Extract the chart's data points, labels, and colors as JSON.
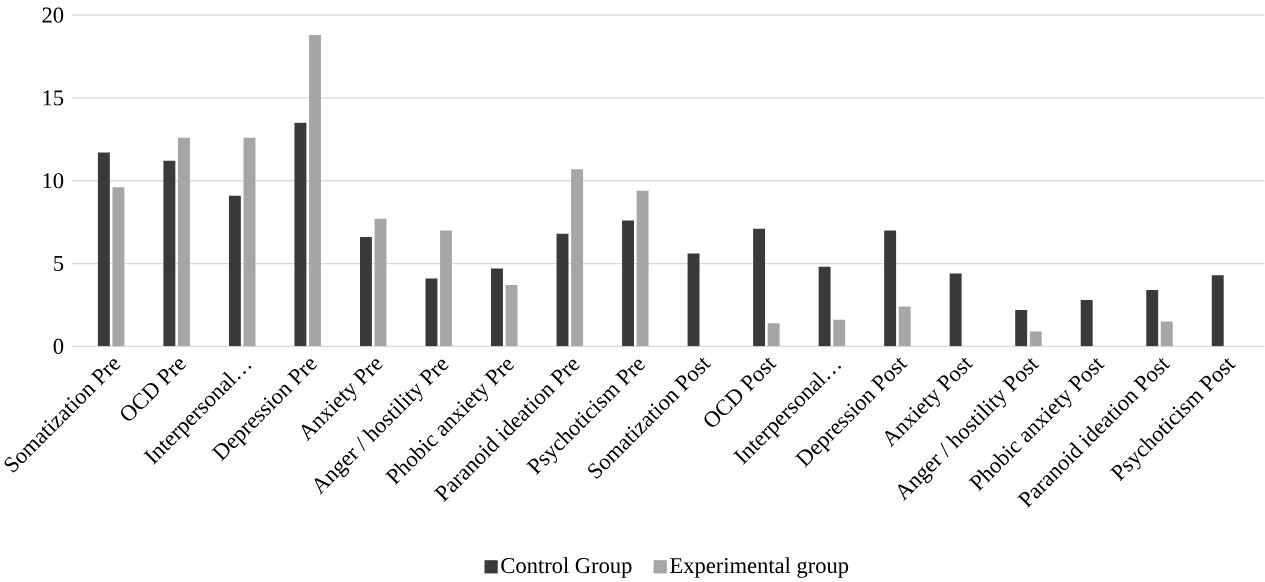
{
  "chart_data": {
    "type": "bar",
    "categories": [
      "Somatization Pre",
      "OCD Pre",
      "Interpersonal…",
      "Depression Pre",
      "Anxiety Pre",
      "Anger / hostility Pre",
      "Phobic anxiety Pre",
      "Paranoid ideation Pre",
      "Psychoticism Pre",
      "Somatization Post",
      "OCD Post",
      "Interpersonal…",
      "Depression Post",
      "Anxiety Post",
      "Anger / hostility Post",
      "Phobic anxiety Post",
      "Paranoid ideation Post",
      "Psychoticism Post"
    ],
    "series": [
      {
        "name": "Control Group",
        "color": "#3a3a3a",
        "values": [
          11.7,
          11.2,
          9.1,
          13.5,
          6.6,
          4.1,
          4.7,
          6.8,
          7.6,
          5.6,
          7.1,
          4.8,
          7.0,
          4.4,
          2.2,
          2.8,
          3.4,
          4.3
        ]
      },
      {
        "name": "Experimental group",
        "color": "#a6a6a6",
        "values": [
          9.6,
          12.6,
          12.6,
          18.8,
          7.7,
          7.0,
          3.7,
          10.7,
          9.4,
          null,
          1.4,
          1.6,
          2.4,
          null,
          0.9,
          null,
          1.5,
          null
        ]
      }
    ],
    "ylim": [
      0,
      20
    ],
    "yticks": [
      0,
      5,
      10,
      15,
      20
    ],
    "grid": "y",
    "legend": "bottom"
  }
}
